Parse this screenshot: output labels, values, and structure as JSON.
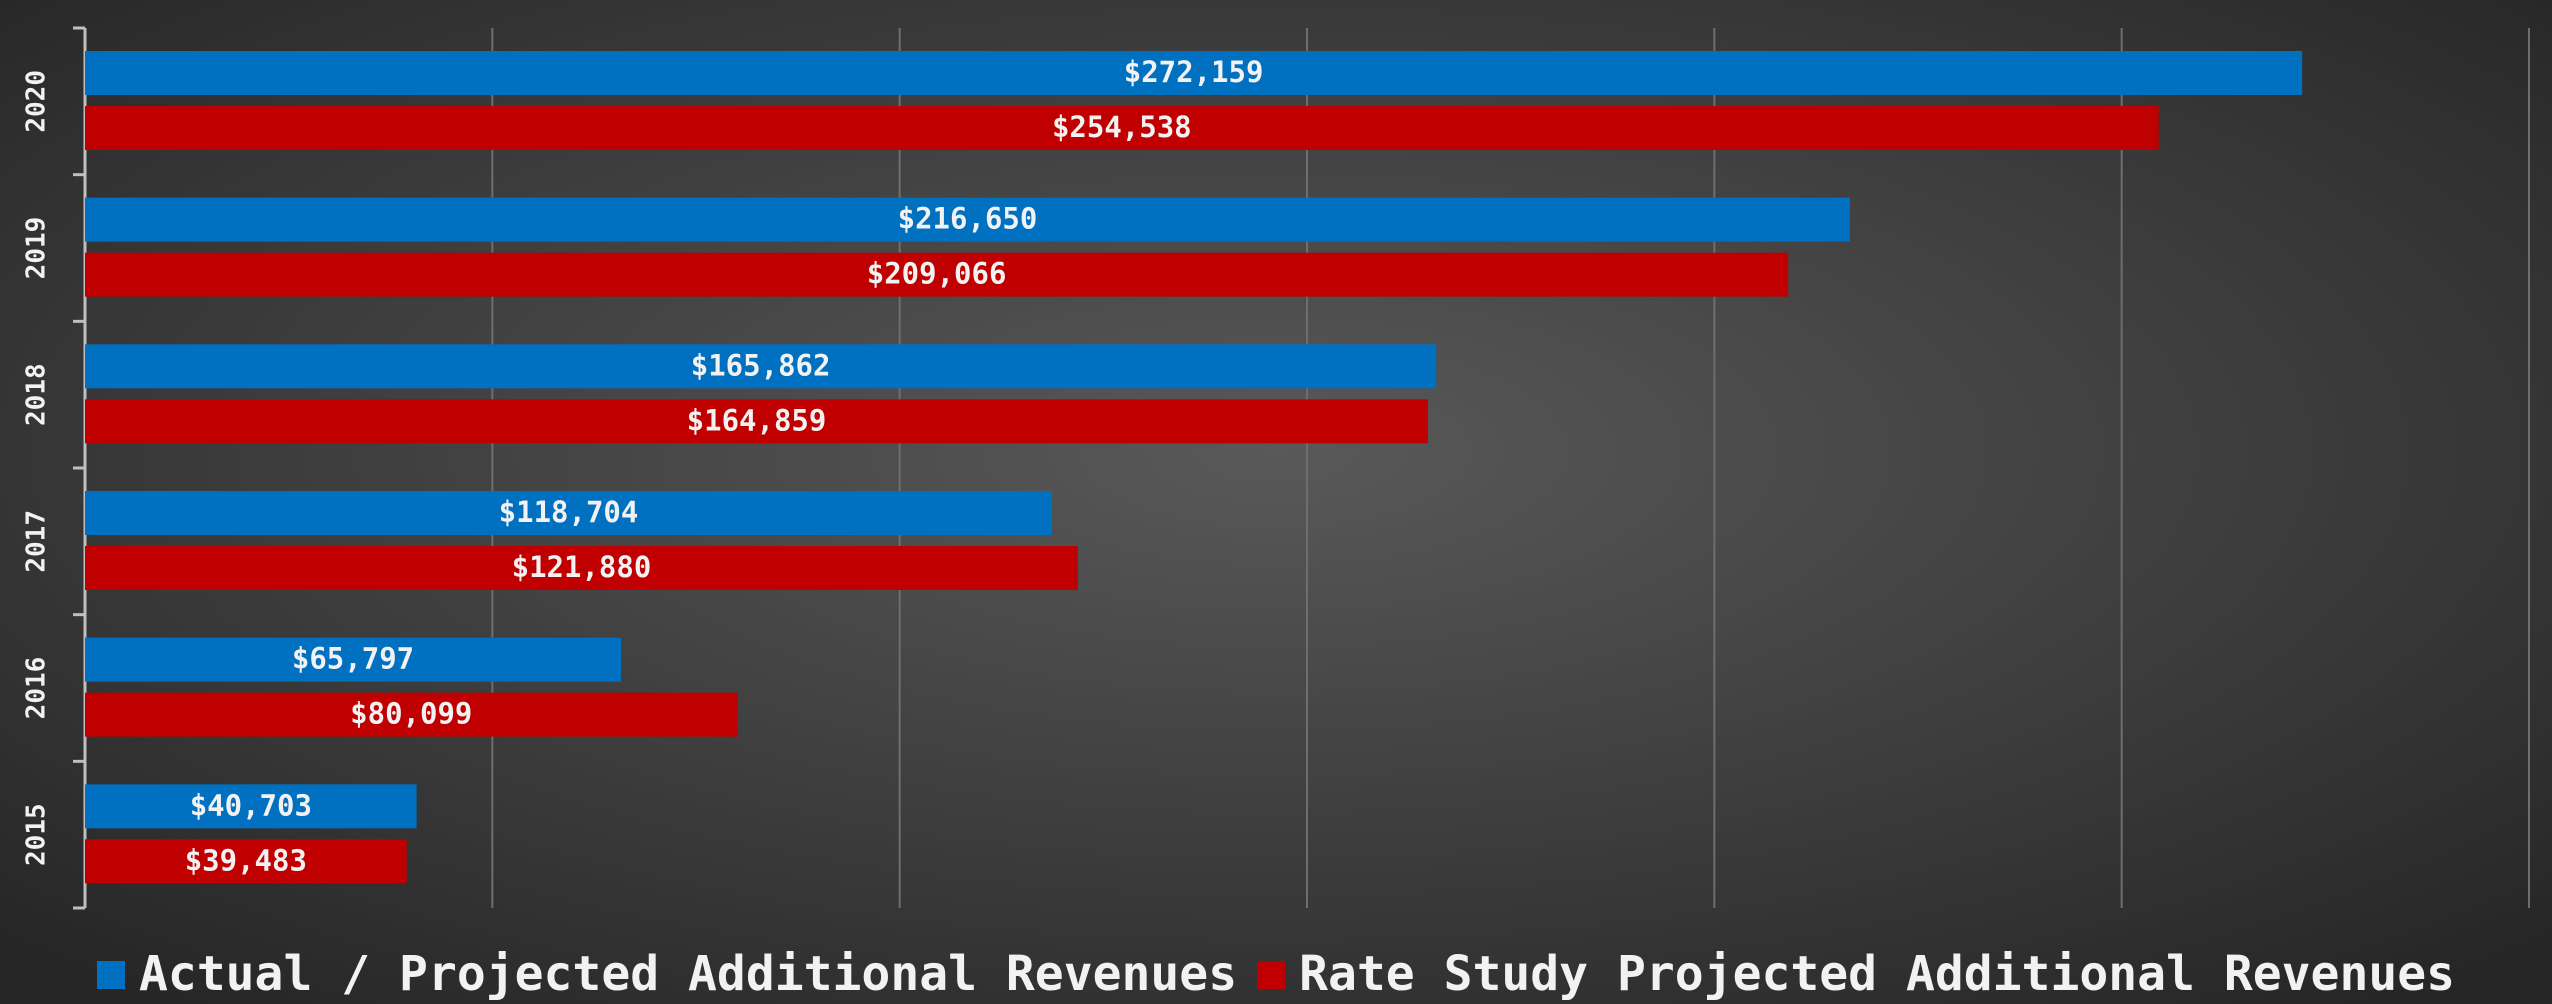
{
  "chart_data": {
    "type": "barh",
    "categories": [
      "2020",
      "2019",
      "2018",
      "2017",
      "2016",
      "2015"
    ],
    "series": [
      {
        "name": "Actual / Projected Additional Revenues",
        "color": "#0070c0",
        "values": [
          272159,
          216650,
          165862,
          118704,
          65797,
          40703
        ],
        "value_labels": [
          "$272,159",
          "$216,650",
          "$165,862",
          "$118,704",
          "$65,797",
          "$40,703"
        ]
      },
      {
        "name": "Rate Study Projected Additional Revenues",
        "color": "#c00000",
        "values": [
          254538,
          209066,
          164859,
          121880,
          80099,
          39483
        ],
        "value_labels": [
          "$254,538",
          "$209,066",
          "$164,859",
          "$121,880",
          "$80,099",
          "$39,483"
        ]
      }
    ],
    "xlim": [
      0,
      300000
    ],
    "xticks": [
      0,
      50000,
      100000,
      150000,
      200000,
      250000,
      300000
    ],
    "grid": true,
    "legend": "bottom"
  }
}
